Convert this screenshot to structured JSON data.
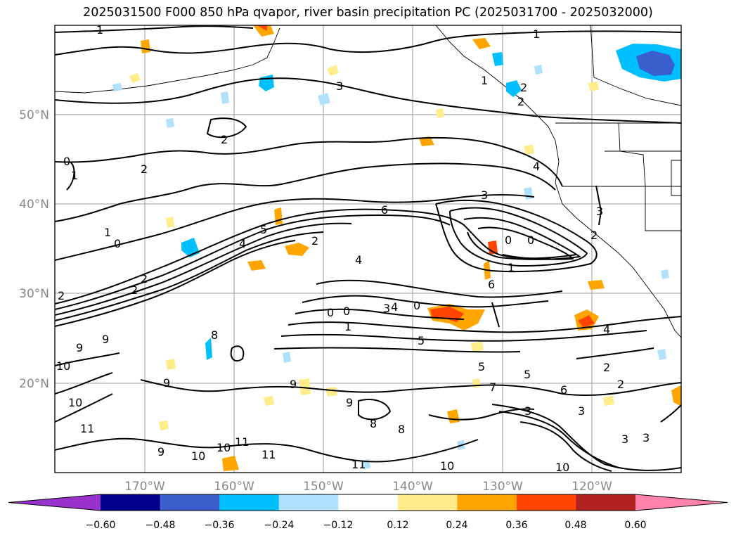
{
  "title": "2025031500 F000 850 hPa qvapor, river basin precipitation PC (2025031700 - 2025032000)",
  "lat_labels": [
    "50°N",
    "40°N",
    "30°N",
    "20°N"
  ],
  "lon_labels": [
    "170°W",
    "160°W",
    "150°W",
    "140°W",
    "130°W",
    "120°W"
  ],
  "colorbar": {
    "colors": [
      "#9932CC",
      "#00008B",
      "#3A5FCD",
      "#00BFFF",
      "#B0E2FF",
      "#FFFFFF",
      "#FFEC8B",
      "#FFA500",
      "#FF4500",
      "#B22222",
      "#FF82AB"
    ],
    "ticks": [
      "−0.60",
      "−0.48",
      "−0.36",
      "−0.24",
      "−0.12",
      "0.12",
      "0.24",
      "0.36",
      "0.48",
      "0.60"
    ]
  },
  "contour_labels": [
    "1",
    "1",
    "1",
    "3",
    "2",
    "2",
    "0",
    "1",
    "1",
    "0",
    "2",
    "2",
    "3",
    "6",
    "5",
    "4",
    "4",
    "2",
    "3",
    "4",
    "0",
    "0",
    "1",
    "6",
    "2",
    "2",
    "2",
    "0",
    "3",
    "4",
    "0",
    "9",
    "1",
    "9",
    "10",
    "10",
    "9",
    "8",
    "5",
    "5",
    "6",
    "7",
    "5",
    "3",
    "3",
    "4",
    "2",
    "2",
    "2",
    "9",
    "9",
    "8",
    "8",
    "11",
    "11",
    "10",
    "11",
    "10",
    "9",
    "11",
    "10",
    "10",
    "3",
    "3",
    "0"
  ]
}
